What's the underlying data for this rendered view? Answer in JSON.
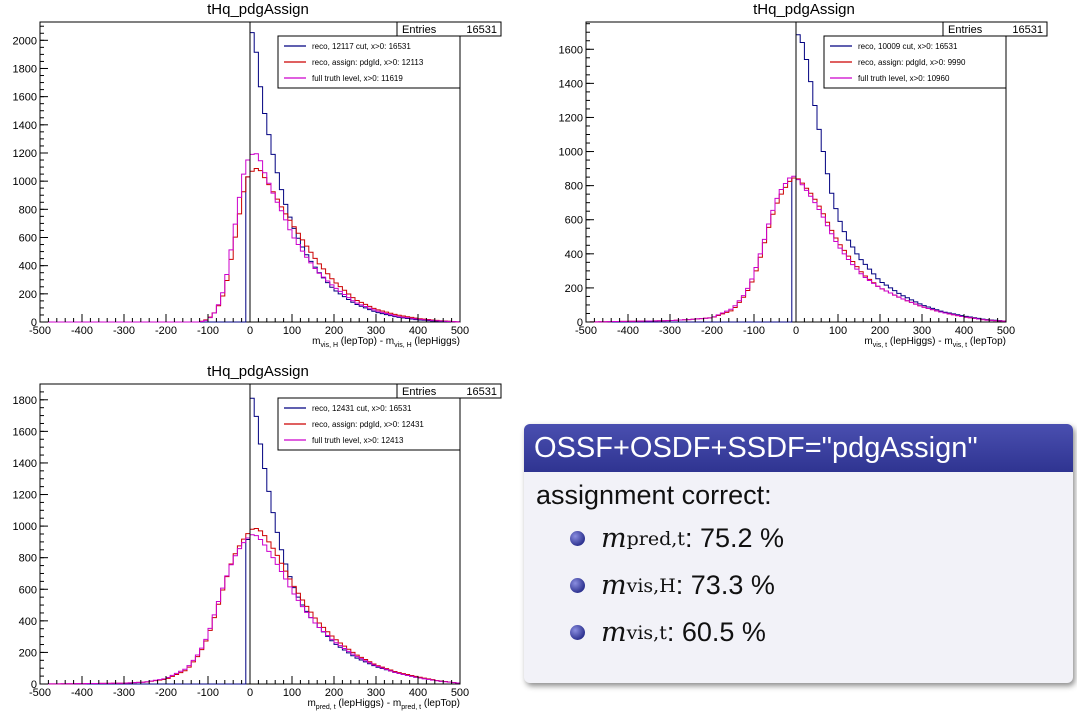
{
  "colors": {
    "reco": "#000080",
    "assign": "#cc0000",
    "truth": "#cc00cc",
    "accent": "#2f3491"
  },
  "chart_data": [
    {
      "type": "histogram",
      "title": "tHq_pdgAssign",
      "stats": {
        "label": "Entries",
        "value": "16531"
      },
      "xlabel": "m_vis,H (lepTop) - m_vis,H (lepHiggs)",
      "xlabel_parts": [
        "m",
        "vis, H",
        " (lepTop) - m",
        "vis, H",
        " (lepHiggs)"
      ],
      "xlim": [
        -500,
        500
      ],
      "ylim": [
        0,
        2130
      ],
      "xticks": [
        "-500",
        "-400",
        "-300",
        "-200",
        "-100",
        "0",
        "100",
        "200",
        "300",
        "400",
        "500"
      ],
      "yticks": [
        0,
        200,
        400,
        600,
        800,
        1000,
        1200,
        1400,
        1600,
        1800,
        2000
      ],
      "grid": false,
      "legend_position": "top-right",
      "series": [
        {
          "name": "reco, 12117 cut, x>0: 16531",
          "color": "#000080",
          "points": [
            [
              -500,
              0
            ],
            [
              -100,
              0
            ],
            [
              -10,
              0
            ],
            [
              0,
              2060
            ],
            [
              10,
              2050
            ],
            [
              20,
              1780
            ],
            [
              30,
              1560
            ],
            [
              40,
              1400
            ],
            [
              50,
              1260
            ],
            [
              60,
              1120
            ],
            [
              70,
              1000
            ],
            [
              80,
              880
            ],
            [
              100,
              700
            ],
            [
              120,
              560
            ],
            [
              140,
              450
            ],
            [
              170,
              330
            ],
            [
              200,
              230
            ],
            [
              250,
              130
            ],
            [
              300,
              70
            ],
            [
              350,
              35
            ],
            [
              400,
              15
            ],
            [
              450,
              5
            ],
            [
              500,
              0
            ]
          ]
        },
        {
          "name": "reco, assign: pdgId, x>0: 12113",
          "color": "#cc0000",
          "points": [
            [
              -500,
              0
            ],
            [
              -120,
              0
            ],
            [
              -100,
              20
            ],
            [
              -80,
              80
            ],
            [
              -60,
              220
            ],
            [
              -40,
              520
            ],
            [
              -20,
              850
            ],
            [
              -10,
              1000
            ],
            [
              0,
              1060
            ],
            [
              10,
              1080
            ],
            [
              20,
              1100
            ],
            [
              30,
              1050
            ],
            [
              40,
              1000
            ],
            [
              60,
              900
            ],
            [
              80,
              790
            ],
            [
              100,
              700
            ],
            [
              130,
              560
            ],
            [
              160,
              430
            ],
            [
              200,
              290
            ],
            [
              250,
              160
            ],
            [
              300,
              90
            ],
            [
              350,
              50
            ],
            [
              400,
              25
            ],
            [
              450,
              10
            ],
            [
              500,
              0
            ]
          ]
        },
        {
          "name": "full truth level, x>0: 11619",
          "color": "#cc00cc",
          "points": [
            [
              -500,
              0
            ],
            [
              -120,
              0
            ],
            [
              -100,
              15
            ],
            [
              -80,
              80
            ],
            [
              -60,
              250
            ],
            [
              -40,
              600
            ],
            [
              -20,
              980
            ],
            [
              -10,
              1120
            ],
            [
              0,
              1180
            ],
            [
              10,
              1200
            ],
            [
              20,
              1190
            ],
            [
              30,
              1100
            ],
            [
              40,
              1020
            ],
            [
              60,
              880
            ],
            [
              80,
              760
            ],
            [
              100,
              620
            ],
            [
              130,
              480
            ],
            [
              160,
              360
            ],
            [
              200,
              250
            ],
            [
              250,
              140
            ],
            [
              300,
              80
            ],
            [
              350,
              40
            ],
            [
              400,
              20
            ],
            [
              450,
              8
            ],
            [
              500,
              0
            ]
          ]
        }
      ]
    },
    {
      "type": "histogram",
      "title": "tHq_pdgAssign",
      "stats": {
        "label": "Entries",
        "value": "16531"
      },
      "xlabel": "m_vis,t (lepHiggs) - m_vis,t (lepTop)",
      "xlabel_parts": [
        "m",
        "vis, t",
        " (lepHiggs) - m",
        "vis, t",
        " (lepTop)"
      ],
      "xlim": [
        -500,
        500
      ],
      "ylim": [
        0,
        1760
      ],
      "xticks": [
        "-500",
        "-400",
        "-300",
        "-200",
        "-100",
        "0",
        "100",
        "200",
        "300",
        "400",
        "500"
      ],
      "yticks": [
        0,
        200,
        400,
        600,
        800,
        1000,
        1200,
        1400,
        1600
      ],
      "grid": false,
      "legend_position": "top-right",
      "series": [
        {
          "name": "reco, 10009 cut, x>0: 16531",
          "color": "#000080",
          "points": [
            [
              -500,
              0
            ],
            [
              -10,
              0
            ],
            [
              0,
              1690
            ],
            [
              10,
              1680
            ],
            [
              20,
              1600
            ],
            [
              30,
              1480
            ],
            [
              40,
              1340
            ],
            [
              50,
              1200
            ],
            [
              60,
              1060
            ],
            [
              70,
              940
            ],
            [
              80,
              800
            ],
            [
              100,
              620
            ],
            [
              120,
              500
            ],
            [
              150,
              380
            ],
            [
              200,
              240
            ],
            [
              250,
              160
            ],
            [
              300,
              100
            ],
            [
              350,
              60
            ],
            [
              400,
              35
            ],
            [
              450,
              15
            ],
            [
              500,
              5
            ]
          ]
        },
        {
          "name": "reco, assign: pdgId, x>0: 9990",
          "color": "#cc0000",
          "points": [
            [
              -500,
              0
            ],
            [
              -300,
              8
            ],
            [
              -250,
              15
            ],
            [
              -200,
              25
            ],
            [
              -150,
              70
            ],
            [
              -120,
              160
            ],
            [
              -100,
              260
            ],
            [
              -80,
              420
            ],
            [
              -60,
              600
            ],
            [
              -40,
              730
            ],
            [
              -20,
              810
            ],
            [
              -10,
              840
            ],
            [
              0,
              850
            ],
            [
              10,
              830
            ],
            [
              20,
              800
            ],
            [
              40,
              740
            ],
            [
              60,
              660
            ],
            [
              80,
              560
            ],
            [
              100,
              470
            ],
            [
              130,
              370
            ],
            [
              160,
              280
            ],
            [
              200,
              200
            ],
            [
              250,
              140
            ],
            [
              300,
              90
            ],
            [
              350,
              55
            ],
            [
              400,
              30
            ],
            [
              450,
              12
            ],
            [
              500,
              4
            ]
          ]
        },
        {
          "name": "full truth level, x>0: 10960",
          "color": "#cc00cc",
          "points": [
            [
              -500,
              0
            ],
            [
              -300,
              8
            ],
            [
              -250,
              15
            ],
            [
              -200,
              25
            ],
            [
              -150,
              80
            ],
            [
              -120,
              170
            ],
            [
              -100,
              280
            ],
            [
              -80,
              440
            ],
            [
              -60,
              620
            ],
            [
              -40,
              760
            ],
            [
              -20,
              830
            ],
            [
              -10,
              860
            ],
            [
              0,
              850
            ],
            [
              10,
              820
            ],
            [
              20,
              790
            ],
            [
              40,
              720
            ],
            [
              60,
              640
            ],
            [
              80,
              540
            ],
            [
              100,
              450
            ],
            [
              130,
              350
            ],
            [
              160,
              270
            ],
            [
              200,
              200
            ],
            [
              250,
              140
            ],
            [
              300,
              90
            ],
            [
              350,
              55
            ],
            [
              400,
              30
            ],
            [
              450,
              12
            ],
            [
              500,
              4
            ]
          ]
        }
      ]
    },
    {
      "type": "histogram",
      "title": "tHq_pdgAssign",
      "stats": {
        "label": "Entries",
        "value": "16531"
      },
      "xlabel": "m_pred,t (lepHiggs) - m_pred,t (lepTop)",
      "xlabel_parts": [
        "m",
        "pred, t",
        " (lepHiggs) - m",
        "pred, t",
        " (lepTop)"
      ],
      "xlim": [
        -500,
        500
      ],
      "ylim": [
        0,
        1900
      ],
      "xticks": [
        "-500",
        "-400",
        "-300",
        "-200",
        "-100",
        "0",
        "100",
        "200",
        "300",
        "400",
        "500"
      ],
      "yticks": [
        0,
        200,
        400,
        600,
        800,
        1000,
        1200,
        1400,
        1600,
        1800
      ],
      "grid": false,
      "legend_position": "top-right",
      "series": [
        {
          "name": "reco, 12431 cut, x>0: 16531",
          "color": "#000080",
          "points": [
            [
              -500,
              0
            ],
            [
              -10,
              0
            ],
            [
              0,
              1830
            ],
            [
              10,
              1790
            ],
            [
              20,
              1600
            ],
            [
              30,
              1440
            ],
            [
              40,
              1290
            ],
            [
              50,
              1150
            ],
            [
              60,
              1020
            ],
            [
              70,
              900
            ],
            [
              80,
              800
            ],
            [
              100,
              640
            ],
            [
              120,
              520
            ],
            [
              150,
              400
            ],
            [
              200,
              260
            ],
            [
              250,
              170
            ],
            [
              300,
              110
            ],
            [
              350,
              70
            ],
            [
              400,
              40
            ],
            [
              450,
              20
            ],
            [
              500,
              5
            ]
          ]
        },
        {
          "name": "reco, assign: pdgId, x>0: 12431",
          "color": "#cc0000",
          "points": [
            [
              -500,
              0
            ],
            [
              -300,
              5
            ],
            [
              -250,
              12
            ],
            [
              -200,
              30
            ],
            [
              -150,
              90
            ],
            [
              -120,
              190
            ],
            [
              -100,
              300
            ],
            [
              -80,
              460
            ],
            [
              -60,
              640
            ],
            [
              -40,
              800
            ],
            [
              -20,
              900
            ],
            [
              0,
              970
            ],
            [
              10,
              990
            ],
            [
              20,
              980
            ],
            [
              30,
              960
            ],
            [
              40,
              920
            ],
            [
              60,
              840
            ],
            [
              80,
              740
            ],
            [
              100,
              640
            ],
            [
              130,
              510
            ],
            [
              160,
              400
            ],
            [
              200,
              290
            ],
            [
              250,
              190
            ],
            [
              300,
              120
            ],
            [
              350,
              75
            ],
            [
              400,
              45
            ],
            [
              450,
              20
            ],
            [
              500,
              5
            ]
          ]
        },
        {
          "name": "full truth level, x>0: 12413",
          "color": "#cc00cc",
          "points": [
            [
              -500,
              0
            ],
            [
              -300,
              5
            ],
            [
              -250,
              12
            ],
            [
              -200,
              35
            ],
            [
              -150,
              100
            ],
            [
              -120,
              200
            ],
            [
              -100,
              310
            ],
            [
              -80,
              480
            ],
            [
              -60,
              650
            ],
            [
              -40,
              790
            ],
            [
              -20,
              880
            ],
            [
              0,
              940
            ],
            [
              10,
              950
            ],
            [
              20,
              930
            ],
            [
              30,
              900
            ],
            [
              40,
              860
            ],
            [
              60,
              780
            ],
            [
              80,
              690
            ],
            [
              100,
              590
            ],
            [
              130,
              470
            ],
            [
              160,
              370
            ],
            [
              200,
              270
            ],
            [
              250,
              180
            ],
            [
              300,
              115
            ],
            [
              350,
              70
            ],
            [
              400,
              40
            ],
            [
              450,
              18
            ],
            [
              500,
              5
            ]
          ]
        }
      ]
    }
  ],
  "summary_block": {
    "title": "OSSF+OSDF+SSDF=\"pdgAssign\"",
    "intro": "assignment correct:",
    "items": [
      {
        "sym": "m",
        "sub": "pred,t",
        "value": ": 75.2 %"
      },
      {
        "sym": "m",
        "sub": "vis,H",
        "value": ": 73.3 %"
      },
      {
        "sym": "m",
        "sub": "vis,t",
        "value": ": 60.5 %"
      }
    ]
  }
}
